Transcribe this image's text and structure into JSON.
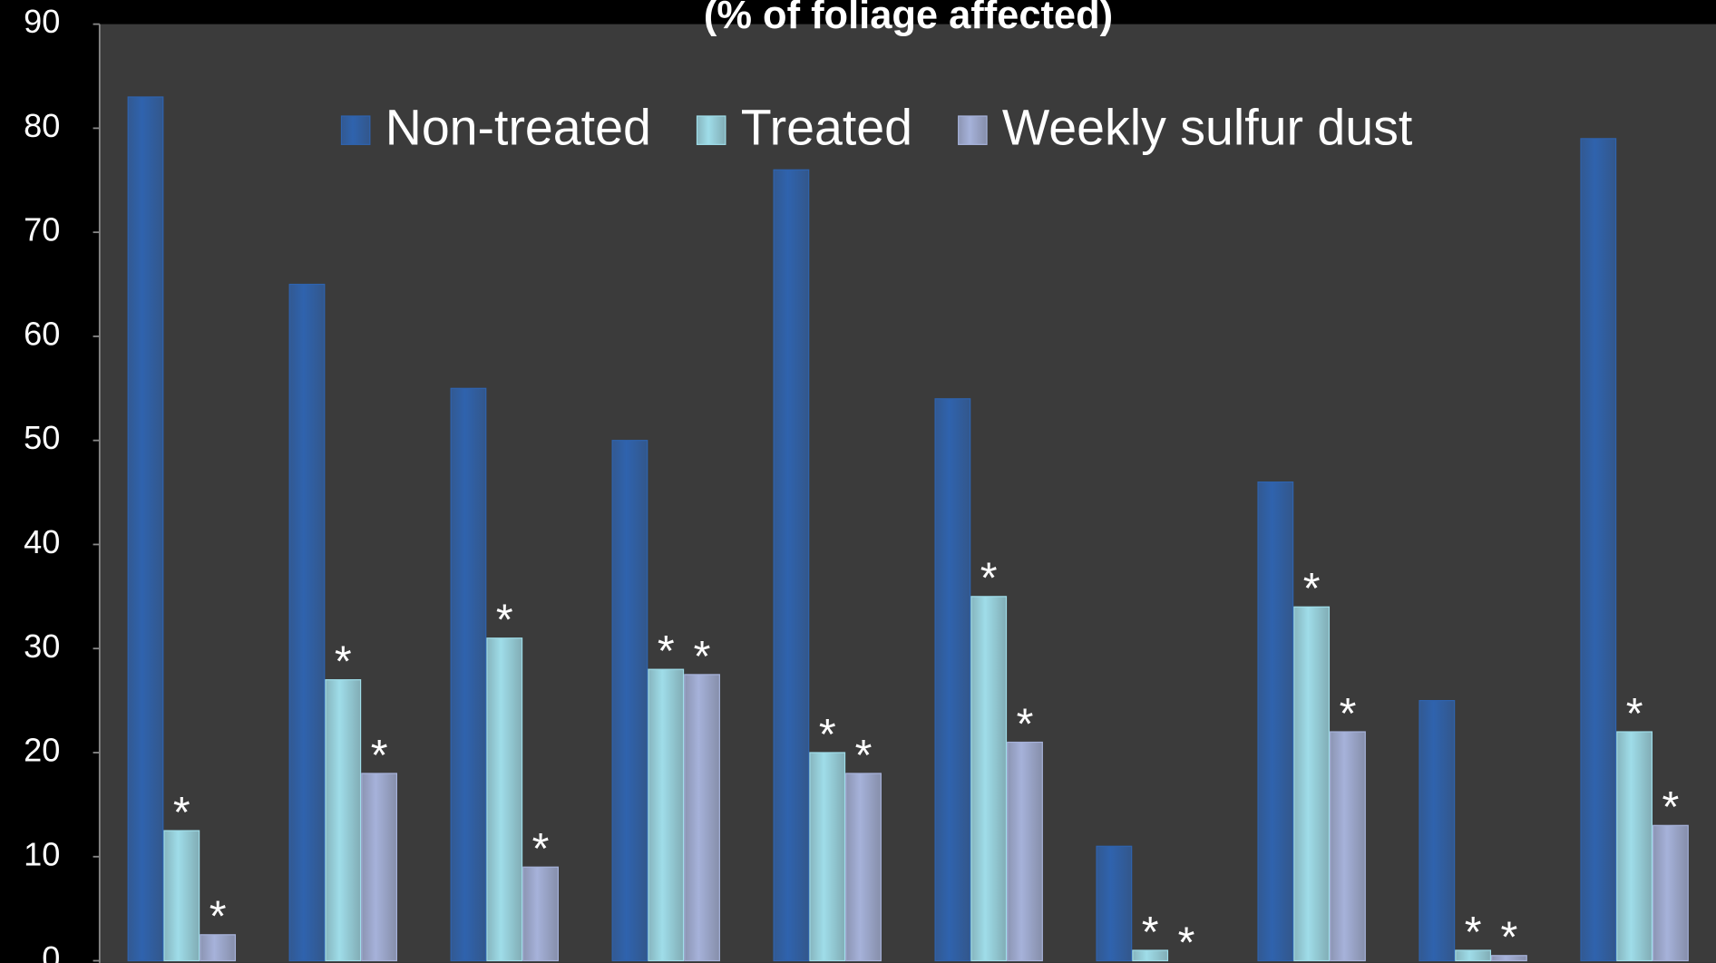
{
  "chart_data": {
    "type": "bar",
    "title": "(% of foliage affected)",
    "categories": [
      null,
      null,
      null,
      null,
      null,
      null,
      null,
      null,
      null,
      null
    ],
    "series": [
      {
        "name": "Non-treated",
        "color": "#2f63ae",
        "values": [
          83,
          65,
          55,
          50,
          76,
          54,
          11,
          46,
          25,
          79
        ]
      },
      {
        "name": "Treated",
        "color": "#9fdde9",
        "values": [
          12.5,
          27,
          31,
          28,
          20,
          35,
          1,
          34,
          1,
          22
        ],
        "point_labels": [
          "*",
          "*",
          "*",
          "*",
          "*",
          "*",
          "*",
          "*",
          "*",
          "*"
        ]
      },
      {
        "name": "Weekly sulfur dust",
        "color": "#a6b2da",
        "values": [
          2.5,
          18,
          9,
          27.5,
          18,
          21,
          0,
          22,
          0.5,
          13
        ],
        "point_labels": [
          "*",
          "*",
          "*",
          "*",
          "*",
          "*",
          "*",
          "*",
          "*",
          "*"
        ]
      }
    ],
    "ylim": [
      0,
      90
    ],
    "yticks": [
      0,
      10,
      20,
      30,
      40,
      50,
      60,
      70,
      80,
      90
    ],
    "legend": "top"
  }
}
